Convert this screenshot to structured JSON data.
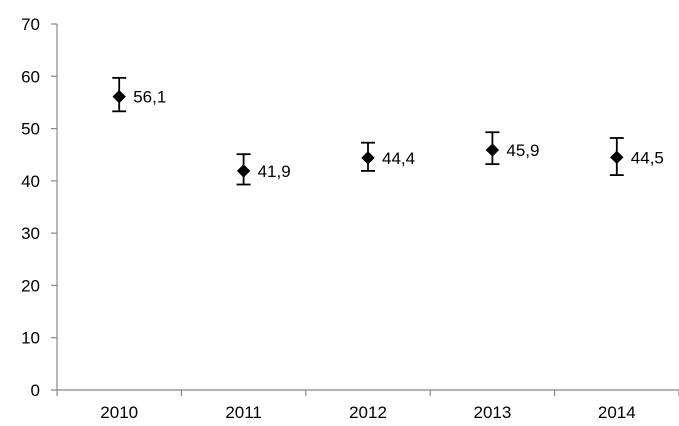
{
  "chart_data": {
    "type": "scatter",
    "title": "",
    "xlabel": "",
    "ylabel": "",
    "categories": [
      "2010",
      "2011",
      "2012",
      "2013",
      "2014"
    ],
    "series": [
      {
        "values": [
          56.1,
          41.9,
          44.4,
          45.9,
          44.5
        ],
        "labels": [
          "56,1",
          "41,9",
          "44,4",
          "45,9",
          "44,5"
        ],
        "error_low": [
          53.3,
          39.3,
          41.9,
          43.2,
          41.1
        ],
        "error_high": [
          59.7,
          45.1,
          47.3,
          49.3,
          48.2
        ],
        "marker": "diamond",
        "color": "#000000"
      }
    ],
    "ylim": [
      0,
      70
    ],
    "yticks": [
      0,
      10,
      20,
      30,
      40,
      50,
      60,
      70
    ],
    "grid": false,
    "legend": "none",
    "error_bars": true
  }
}
